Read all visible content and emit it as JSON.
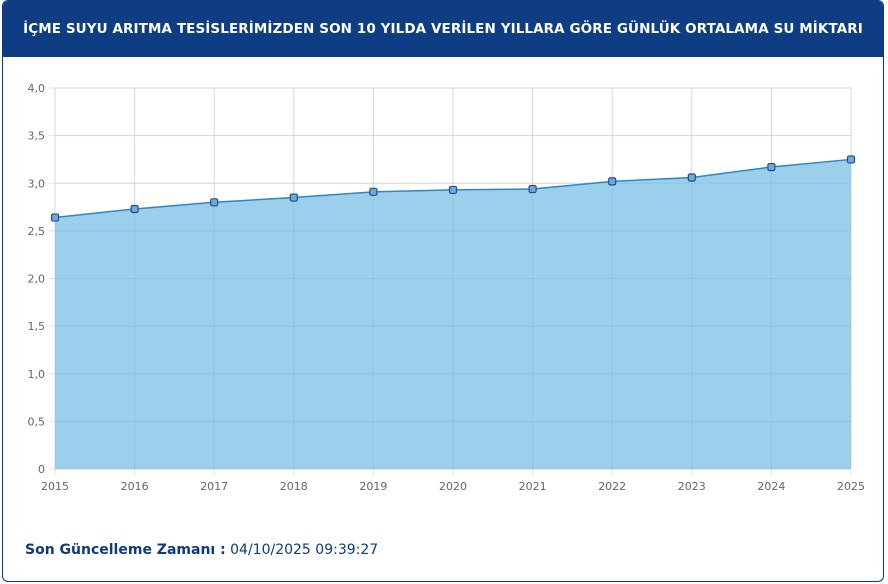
{
  "header": {
    "title": "İÇME SUYU ARITMA TESİSLERİMİZDEN SON 10 YILDA VERİLEN YILLARA GÖRE GÜNLÜK ORTALAMA SU MİKTARI"
  },
  "footer": {
    "label": "Son Güncelleme Zamanı :",
    "value": "04/10/2025 09:39:27"
  },
  "colors": {
    "header_bg": "#0e3d84",
    "area_fill": "#9bcfec",
    "line": "#2f86c6",
    "point_fill": "#6fa9dc",
    "point_stroke": "#1d4f8f"
  },
  "chart_data": {
    "type": "area",
    "categories": [
      "2015",
      "2016",
      "2017",
      "2018",
      "2019",
      "2020",
      "2021",
      "2022",
      "2023",
      "2024",
      "2025"
    ],
    "values": [
      2.64,
      2.73,
      2.8,
      2.85,
      2.91,
      2.93,
      2.94,
      3.02,
      3.06,
      3.17,
      3.25
    ],
    "ylim": [
      0,
      4
    ],
    "yticks": [
      "0",
      "0,5",
      "1,0",
      "1,5",
      "2,0",
      "2,5",
      "3,0",
      "3,5",
      "4,0"
    ],
    "grid": true,
    "legend": "none"
  }
}
